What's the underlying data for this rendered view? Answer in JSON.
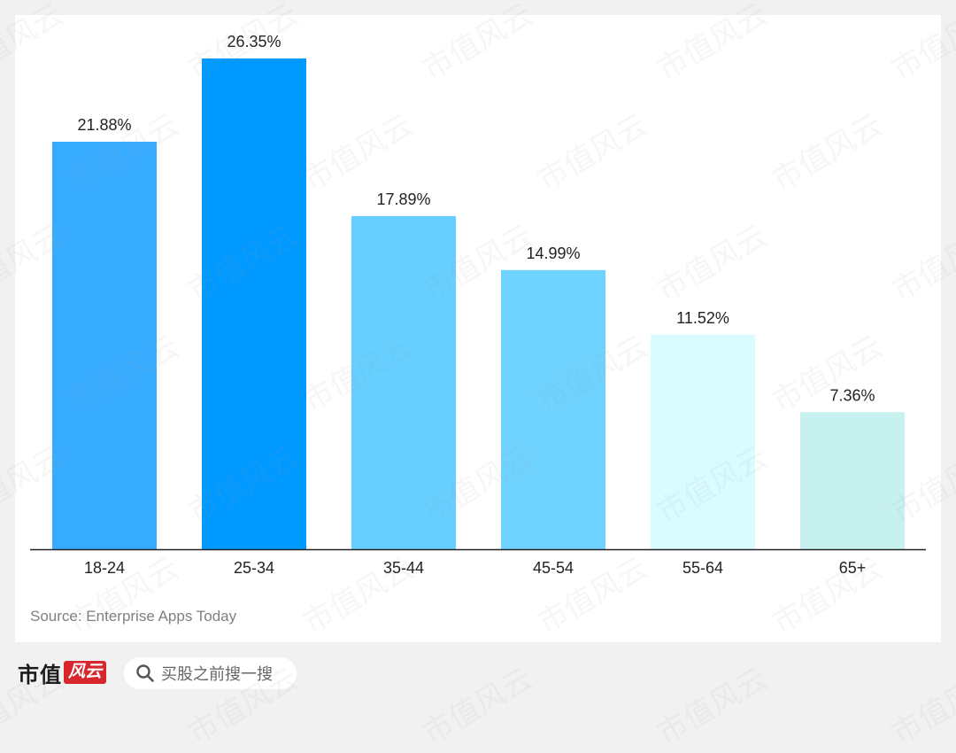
{
  "chart_data": {
    "type": "bar",
    "categories": [
      "18-24",
      "25-34",
      "35-44",
      "45-54",
      "55-64",
      "65+"
    ],
    "values": [
      21.88,
      26.35,
      17.89,
      14.99,
      11.52,
      7.36
    ],
    "value_labels": [
      "21.88%",
      "26.35%",
      "17.89%",
      "14.99%",
      "11.52%",
      "7.36%"
    ],
    "bar_colors": [
      "#37abff",
      "#0099ff",
      "#66cfff",
      "#70d3ff",
      "#d9fcff",
      "#c6f1ef"
    ],
    "ylim": [
      0,
      26.35
    ],
    "title": "",
    "xlabel": "",
    "ylabel": "",
    "grid": false,
    "legend": "none",
    "source": "Source: Enterprise Apps Today"
  },
  "footer": {
    "brand": "市值",
    "brand_seal": "风云",
    "search_text": "买股之前搜一搜",
    "search_icon": "search-icon"
  },
  "watermark_text": "市值风云"
}
